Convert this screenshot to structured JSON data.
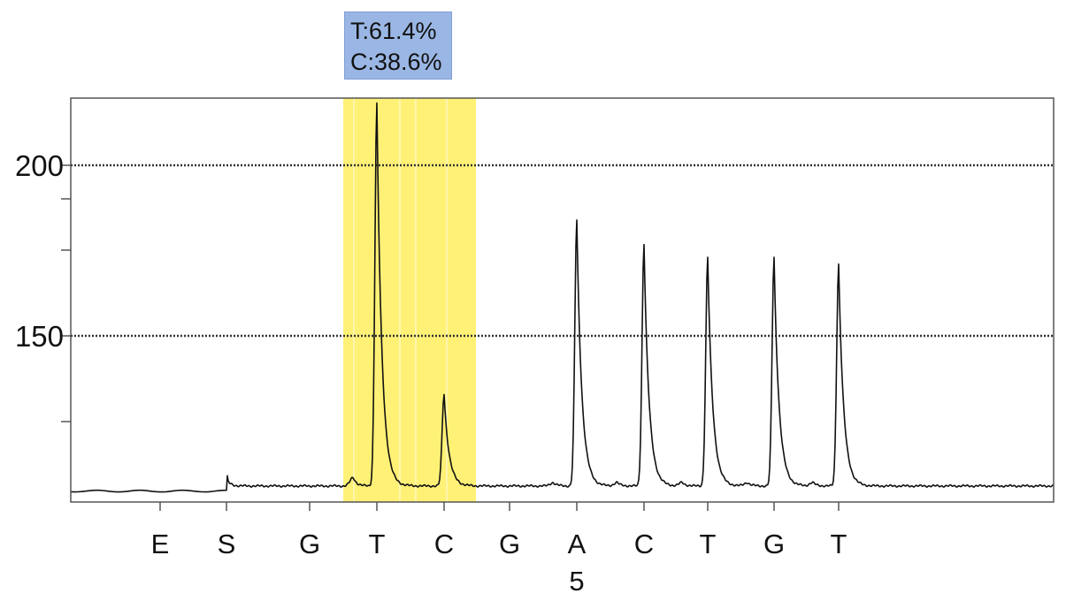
{
  "chart_data": {
    "type": "line",
    "title": "",
    "xlabel": "",
    "ylabel": "",
    "ylim": [
      103,
      220
    ],
    "y_ticks": [
      200,
      150
    ],
    "grid": "horizontal dotted at labelled ticks",
    "dispensations": [
      "E",
      "S",
      "G",
      "T",
      "C",
      "G",
      "A",
      "C",
      "T",
      "G",
      "T"
    ],
    "position_marker": {
      "label": "5",
      "under_index": 6
    },
    "highlight": {
      "from_index": 2.6,
      "to_index": 4.5,
      "color": "#fff176"
    },
    "annotation": {
      "lines": [
        "T:61.4%",
        "C:38.6%"
      ],
      "color": "#9ab6e4"
    },
    "baseline_before": 104.5,
    "baseline_after": 106.0,
    "peaks": [
      {
        "index": 1,
        "value": 108
      },
      {
        "index": 2.65,
        "value": 108.5
      },
      {
        "index": 3,
        "value": 218
      },
      {
        "index": 4,
        "value": 133
      },
      {
        "index": 5.65,
        "value": 107
      },
      {
        "index": 6,
        "value": 184
      },
      {
        "index": 6.6,
        "value": 107
      },
      {
        "index": 7,
        "value": 177
      },
      {
        "index": 7.6,
        "value": 107
      },
      {
        "index": 8,
        "value": 173
      },
      {
        "index": 8.6,
        "value": 107
      },
      {
        "index": 9,
        "value": 173
      },
      {
        "index": 9.6,
        "value": 107
      },
      {
        "index": 10,
        "value": 171
      }
    ],
    "line_color": "#111111"
  }
}
